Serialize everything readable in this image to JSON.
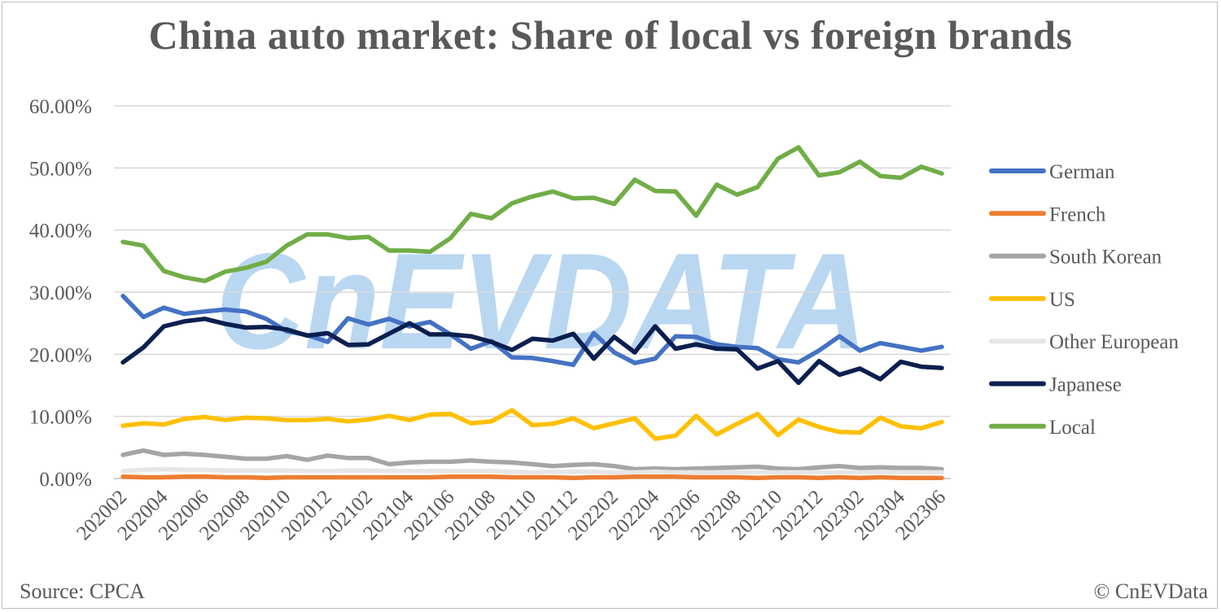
{
  "chart_data": {
    "type": "line",
    "title": "China auto market: Share of local vs foreign brands",
    "xlabel": "",
    "ylabel": "",
    "ylim": [
      0,
      0.6
    ],
    "y_ticks": [
      "0.00%",
      "10.00%",
      "20.00%",
      "30.00%",
      "40.00%",
      "50.00%",
      "60.00%"
    ],
    "grid": "horizontal",
    "legend_position": "right",
    "x_tick_labels": [
      "202002",
      "202004",
      "202006",
      "202008",
      "202010",
      "202012",
      "202102",
      "202104",
      "202106",
      "202108",
      "202110",
      "202112",
      "202202",
      "202204",
      "202206",
      "202208",
      "202210",
      "202212",
      "202302",
      "202304",
      "202306"
    ],
    "x": [
      "202002",
      "202003",
      "202004",
      "202005",
      "202006",
      "202007",
      "202008",
      "202009",
      "202010",
      "202011",
      "202012",
      "202101",
      "202102",
      "202103",
      "202104",
      "202105",
      "202106",
      "202107",
      "202108",
      "202109",
      "202110",
      "202111",
      "202112",
      "202201",
      "202202",
      "202203",
      "202204",
      "202205",
      "202206",
      "202207",
      "202208",
      "202209",
      "202210",
      "202211",
      "202212",
      "202301",
      "202302",
      "202303",
      "202304",
      "202305",
      "202306"
    ],
    "series": [
      {
        "name": "German",
        "color": "#4472C4",
        "values": [
          29.4,
          26.0,
          27.5,
          26.5,
          26.9,
          27.2,
          26.9,
          25.7,
          23.7,
          23.1,
          22.0,
          25.8,
          24.8,
          25.7,
          24.5,
          25.2,
          23.2,
          20.9,
          22.1,
          19.5,
          19.4,
          18.9,
          18.3,
          23.4,
          20.3,
          18.6,
          19.3,
          22.9,
          22.8,
          21.6,
          21.2,
          21.0,
          19.2,
          18.7,
          20.6,
          22.9,
          20.6,
          21.8,
          21.2,
          20.6,
          21.2
        ]
      },
      {
        "name": "French",
        "color": "#ED7D31",
        "values": [
          0.3,
          0.2,
          0.2,
          0.3,
          0.3,
          0.2,
          0.2,
          0.1,
          0.2,
          0.2,
          0.2,
          0.2,
          0.2,
          0.2,
          0.2,
          0.2,
          0.3,
          0.3,
          0.3,
          0.2,
          0.2,
          0.2,
          0.1,
          0.2,
          0.2,
          0.3,
          0.3,
          0.3,
          0.2,
          0.2,
          0.2,
          0.1,
          0.2,
          0.2,
          0.1,
          0.2,
          0.1,
          0.2,
          0.1,
          0.1,
          0.1
        ]
      },
      {
        "name": "South Korean",
        "color": "#A5A5A5",
        "values": [
          3.8,
          4.5,
          3.8,
          4.0,
          3.8,
          3.5,
          3.2,
          3.2,
          3.6,
          3.0,
          3.7,
          3.3,
          3.3,
          2.3,
          2.6,
          2.7,
          2.7,
          2.9,
          2.7,
          2.6,
          2.3,
          2.0,
          2.2,
          2.3,
          2.0,
          1.5,
          1.6,
          1.5,
          1.6,
          1.7,
          1.8,
          1.9,
          1.6,
          1.5,
          1.8,
          2.0,
          1.7,
          1.8,
          1.7,
          1.7,
          1.5
        ]
      },
      {
        "name": "US",
        "color": "#FFC000",
        "values": [
          8.5,
          8.9,
          8.7,
          9.6,
          9.9,
          9.4,
          9.8,
          9.7,
          9.4,
          9.4,
          9.6,
          9.2,
          9.5,
          10.1,
          9.4,
          10.3,
          10.4,
          8.9,
          9.2,
          11.0,
          8.6,
          8.8,
          9.7,
          8.1,
          8.9,
          9.7,
          6.4,
          6.9,
          10.1,
          7.1,
          8.8,
          10.4,
          7.0,
          9.5,
          8.3,
          7.5,
          7.4,
          9.8,
          8.4,
          8.1,
          9.1
        ]
      },
      {
        "name": "Other European",
        "color": "#E7E6E6",
        "values": [
          1.2,
          1.4,
          1.5,
          1.4,
          1.4,
          1.3,
          1.3,
          1.3,
          1.3,
          1.2,
          1.2,
          1.3,
          1.3,
          1.2,
          1.2,
          1.2,
          1.2,
          1.2,
          1.2,
          1.1,
          1.0,
          1.1,
          1.1,
          1.1,
          1.0,
          1.0,
          1.1,
          1.0,
          1.0,
          1.0,
          1.0,
          1.0,
          1.0,
          1.0,
          1.0,
          1.0,
          1.0,
          1.0,
          1.0,
          1.0,
          1.0
        ]
      },
      {
        "name": "Japanese",
        "color": "#0B1F4F",
        "values": [
          18.7,
          21.1,
          24.5,
          25.3,
          25.7,
          24.9,
          24.3,
          24.4,
          24.0,
          23.0,
          23.4,
          21.5,
          21.6,
          23.3,
          25.0,
          23.2,
          23.2,
          22.9,
          22.0,
          20.7,
          22.5,
          22.2,
          23.3,
          19.3,
          22.8,
          20.3,
          24.5,
          20.9,
          21.6,
          20.9,
          20.8,
          17.7,
          18.9,
          15.4,
          18.9,
          16.7,
          17.7,
          16.0,
          18.8,
          18.0,
          17.8
        ]
      },
      {
        "name": "Local",
        "color": "#70AD47",
        "values": [
          38.1,
          37.5,
          33.4,
          32.4,
          31.8,
          33.3,
          33.9,
          34.9,
          37.5,
          39.3,
          39.3,
          38.7,
          38.9,
          36.7,
          36.7,
          36.5,
          38.7,
          42.6,
          41.9,
          44.3,
          45.4,
          46.2,
          45.1,
          45.2,
          44.2,
          48.1,
          46.3,
          46.2,
          42.3,
          47.3,
          45.7,
          46.9,
          51.5,
          53.3,
          48.8,
          49.3,
          51.0,
          48.7,
          48.4,
          50.2,
          49.1
        ]
      }
    ]
  },
  "footer": {
    "source": "Source: CPCA",
    "copyright": "© CnEVData"
  },
  "watermark": {
    "text": "CnEVDATA",
    "color": "#B7D5F2"
  }
}
